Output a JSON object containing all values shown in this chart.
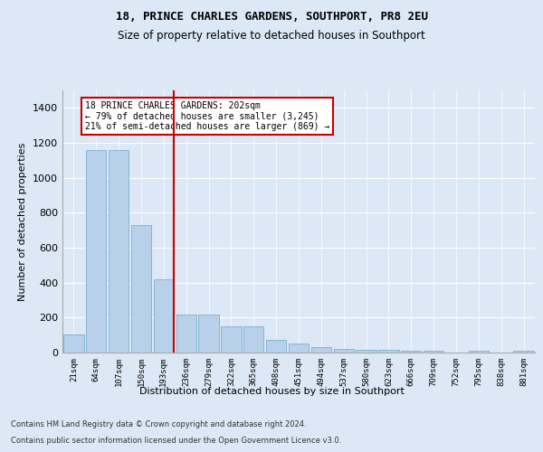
{
  "title1": "18, PRINCE CHARLES GARDENS, SOUTHPORT, PR8 2EU",
  "title2": "Size of property relative to detached houses in Southport",
  "xlabel": "Distribution of detached houses by size in Southport",
  "ylabel": "Number of detached properties",
  "categories": [
    "21sqm",
    "64sqm",
    "107sqm",
    "150sqm",
    "193sqm",
    "236sqm",
    "279sqm",
    "322sqm",
    "365sqm",
    "408sqm",
    "451sqm",
    "494sqm",
    "537sqm",
    "580sqm",
    "623sqm",
    "666sqm",
    "709sqm",
    "752sqm",
    "795sqm",
    "838sqm",
    "881sqm"
  ],
  "values": [
    105,
    1160,
    1160,
    730,
    420,
    215,
    215,
    150,
    150,
    72,
    50,
    30,
    20,
    18,
    18,
    12,
    12,
    0,
    12,
    0,
    12
  ],
  "bar_color": "#b8d0ea",
  "bar_edge_color": "#7aafd4",
  "vline_color": "#cc0000",
  "annotation_text": "18 PRINCE CHARLES GARDENS: 202sqm\n← 79% of detached houses are smaller (3,245)\n21% of semi-detached houses are larger (869) →",
  "annotation_box_color": "#ffffff",
  "annotation_box_edge": "#cc0000",
  "ylim": [
    0,
    1500
  ],
  "yticks": [
    0,
    200,
    400,
    600,
    800,
    1000,
    1200,
    1400
  ],
  "footer1": "Contains HM Land Registry data © Crown copyright and database right 2024.",
  "footer2": "Contains public sector information licensed under the Open Government Licence v3.0.",
  "bg_color": "#dce8f5",
  "plot_bg_color": "#dce8f5",
  "grid_color": "#ffffff",
  "vline_index": 4
}
